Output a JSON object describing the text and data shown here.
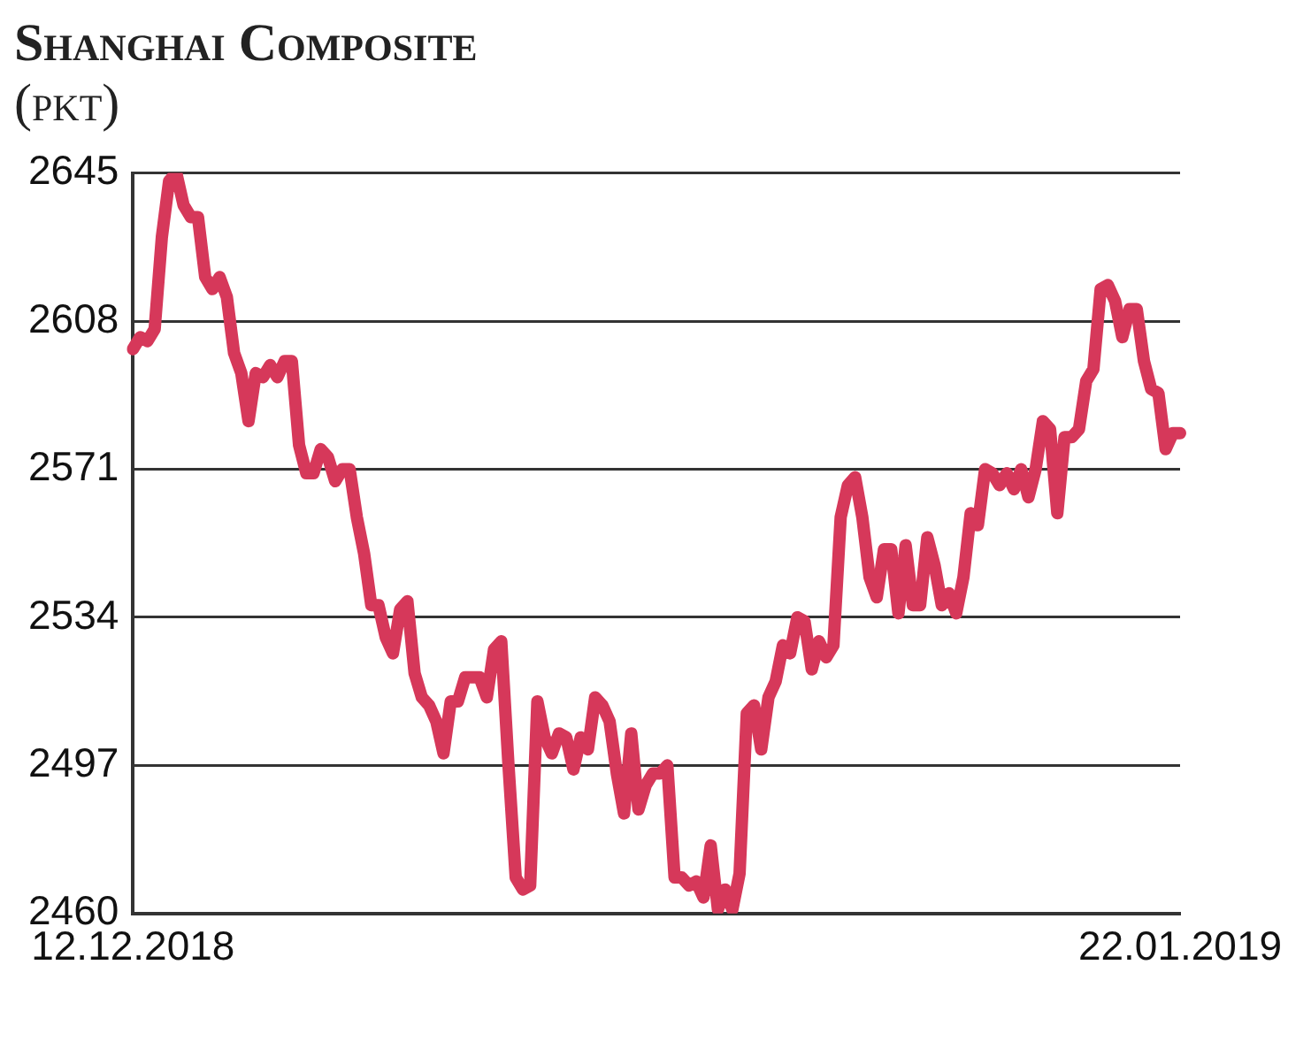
{
  "chart_data": {
    "type": "line",
    "title": "Shanghai Composite",
    "subtitle": "(pkt)",
    "categories": [
      "12.12.2018",
      null,
      null,
      null,
      null,
      null,
      null,
      null,
      null,
      null,
      null,
      null,
      null,
      null,
      null,
      null,
      null,
      null,
      null,
      null,
      null,
      null,
      null,
      null,
      null,
      null,
      null,
      null,
      null,
      null,
      null,
      null,
      null,
      null,
      null,
      null,
      null,
      null,
      null,
      null,
      null,
      null,
      null,
      null,
      null,
      null,
      null,
      null,
      null,
      null,
      null,
      null,
      null,
      null,
      null,
      null,
      null,
      null,
      null,
      null,
      null,
      null,
      null,
      null,
      null,
      null,
      null,
      null,
      null,
      null,
      null,
      null,
      null,
      null,
      null,
      null,
      null,
      null,
      null,
      null,
      null,
      null,
      null,
      null,
      null,
      null,
      null,
      null,
      null,
      null,
      null,
      null,
      null,
      null,
      null,
      null,
      null,
      null,
      null,
      null,
      null,
      null,
      null,
      null,
      null,
      null,
      null,
      null,
      null,
      null,
      null,
      null,
      null,
      null,
      null,
      null,
      null,
      null,
      null,
      null,
      null,
      null,
      null,
      null,
      null,
      null,
      null,
      null,
      null,
      null,
      null,
      null,
      null,
      null,
      null,
      null,
      null,
      null,
      null,
      null,
      null,
      null,
      null,
      null,
      null,
      "22.01.2019"
    ],
    "series": [
      {
        "color": "#d6385a",
        "values": [
          2601,
          2604,
          2603,
          2606,
          2629,
          2643,
          2645,
          2637,
          2634,
          2634,
          2619,
          2616,
          2619,
          2614,
          2600,
          2595,
          2583,
          2595,
          2594,
          2597,
          2594,
          2598,
          2598,
          2577,
          2570,
          2570,
          2576,
          2574,
          2568,
          2571,
          2571,
          2559,
          2550,
          2537,
          2537,
          2529,
          2525,
          2536,
          2538,
          2520,
          2514,
          2512,
          2508,
          2500,
          2513,
          2513,
          2519,
          2519,
          2519,
          2514,
          2526,
          2528,
          2497,
          2469,
          2466,
          2467,
          2513,
          2504,
          2500,
          2505,
          2504,
          2496,
          2504,
          2501,
          2514,
          2512,
          2508,
          2495,
          2485,
          2505,
          2486,
          2492,
          2495,
          2495,
          2497,
          2469,
          2469,
          2467,
          2468,
          2464,
          2477,
          2461,
          2466,
          2461,
          2470,
          2510,
          2512,
          2501,
          2514,
          2518,
          2527,
          2525,
          2534,
          2533,
          2521,
          2528,
          2524,
          2527,
          2559,
          2567,
          2569,
          2559,
          2544,
          2539,
          2551,
          2551,
          2535,
          2552,
          2537,
          2537,
          2554,
          2547,
          2537,
          2540,
          2535,
          2544,
          2560,
          2557,
          2571,
          2570,
          2567,
          2570,
          2566,
          2571,
          2564,
          2571,
          2583,
          2581,
          2560,
          2579,
          2579,
          2581,
          2593,
          2596,
          2616,
          2617,
          2613,
          2604,
          2611,
          2611,
          2598,
          2591,
          2590,
          2576,
          2580,
          2580
        ]
      }
    ],
    "ylim": [
      2460,
      2645
    ],
    "yticks": [
      2460,
      2497,
      2534,
      2571,
      2608,
      2645
    ],
    "grid": "y",
    "legend": false,
    "marker": "none",
    "line_style": "solid"
  }
}
